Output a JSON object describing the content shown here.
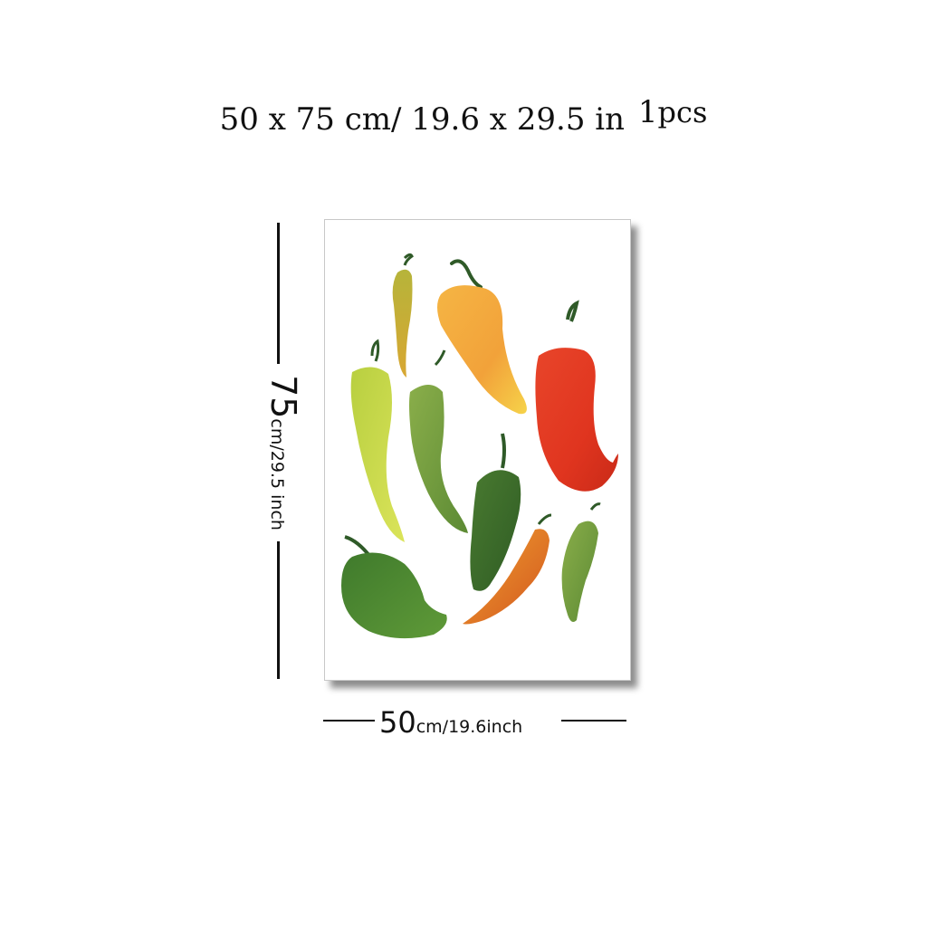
{
  "headline": {
    "size_text": "50 x 75 cm/ 19.6  x  29.5 in",
    "qty": "1",
    "qty_unit": "pcs"
  },
  "height_label": {
    "value": "75",
    "unit": "cm/29.5 inch"
  },
  "width_label": {
    "value": "50",
    "unit": "cm/19.6inch"
  },
  "artwork": {
    "subject": "watercolor chili peppers",
    "colors": {
      "red": "#e0351f",
      "orange": "#f2a23a",
      "yellow_green": "#c9d84a",
      "green": "#6f9a3a",
      "dark_green": "#3b6a2a",
      "stem": "#2f5a28"
    }
  }
}
